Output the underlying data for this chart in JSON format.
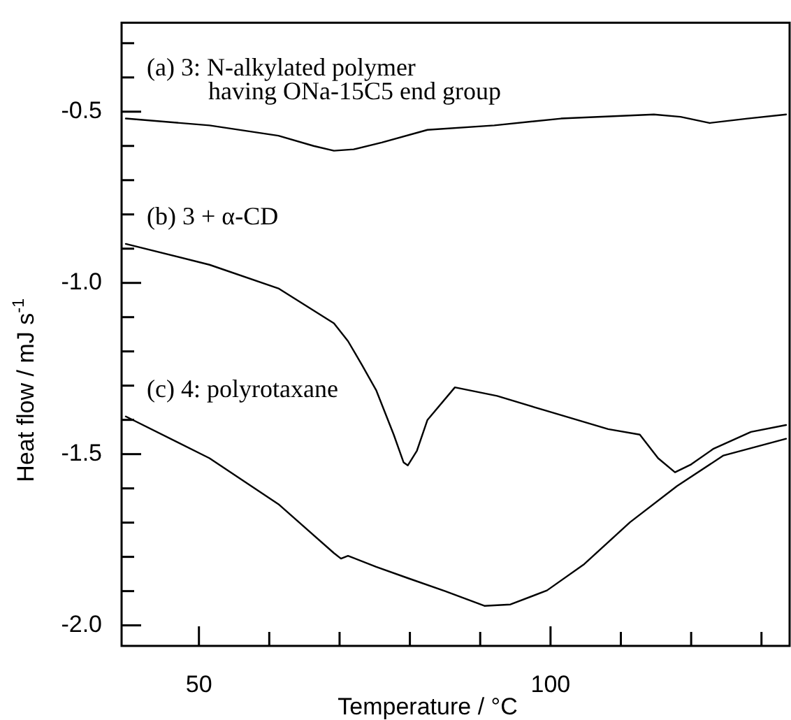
{
  "chart_data": {
    "type": "line",
    "xlabel": "Temperature / °C",
    "ylabel": "Heat flow / mJ s$^{-1}$",
    "xlim": [
      39,
      134
    ],
    "ylim": [
      -2.06,
      -0.24
    ],
    "xticks": [
      50,
      {
        "value": 60,
        "label": null
      },
      {
        "value": 70,
        "label": null
      },
      {
        "value": 80,
        "label": null
      },
      {
        "value": 90,
        "label": null
      },
      100,
      {
        "value": 110,
        "label": null
      },
      {
        "value": 120,
        "label": null
      },
      {
        "value": 130,
        "label": null
      }
    ],
    "yticks": [
      {
        "value": -0.3,
        "label": null
      },
      {
        "value": -0.4,
        "label": null
      },
      -0.5,
      {
        "value": -0.6,
        "label": null
      },
      {
        "value": -0.7,
        "label": null
      },
      {
        "value": -0.8,
        "label": null
      },
      {
        "value": -0.9,
        "label": null
      },
      {
        "value": -1.0,
        "label": "-1.0"
      },
      {
        "value": -1.1,
        "label": null
      },
      {
        "value": -1.2,
        "label": null
      },
      {
        "value": -1.3,
        "label": null
      },
      {
        "value": -1.4,
        "label": null
      },
      -1.5,
      {
        "value": -1.6,
        "label": null
      },
      {
        "value": -1.7,
        "label": null
      },
      {
        "value": -1.8,
        "label": null
      },
      {
        "value": -1.9,
        "label": null
      },
      {
        "value": -2.0,
        "label": "-2.0"
      }
    ],
    "grid": false,
    "legend": false,
    "marker": "none",
    "line_style": "solid",
    "series": [
      {
        "name": "(a) 3: N-alkylated polymer having ONa-15C5 end group",
        "color": "#000000",
        "x": [
          39.6,
          51.5,
          61.3,
          66.3,
          69.2,
          72,
          76,
          82.5,
          92,
          101.5,
          114.7,
          118.5,
          122.6,
          128,
          133.5
        ],
        "values": [
          -0.52,
          -0.54,
          -0.57,
          -0.6,
          -0.614,
          -0.61,
          -0.59,
          -0.553,
          -0.54,
          -0.52,
          -0.508,
          -0.515,
          -0.533,
          -0.52,
          -0.508
        ]
      },
      {
        "name": "(b) 3 + α-CD",
        "color": "#000000",
        "x": [
          39.6,
          51.5,
          61.3,
          69.2,
          71.2,
          73.2,
          75.2,
          77.7,
          79.1,
          79.7,
          81,
          82.5,
          86.4,
          92.4,
          99.5,
          108.2,
          112.7,
          115.3,
          117.7,
          120,
          123.2,
          128.5,
          133.5
        ],
        "values": [
          -0.886,
          -0.947,
          -1.016,
          -1.118,
          -1.17,
          -1.24,
          -1.313,
          -1.443,
          -1.524,
          -1.533,
          -1.49,
          -1.4,
          -1.305,
          -1.33,
          -1.374,
          -1.427,
          -1.443,
          -1.512,
          -1.553,
          -1.53,
          -1.484,
          -1.435,
          -1.415
        ]
      },
      {
        "name": "(c) 4: polyrotaxane",
        "color": "#000000",
        "x": [
          39.6,
          51.5,
          61.3,
          69.2,
          70.2,
          71.2,
          75.2,
          79.7,
          85,
          90.6,
          94.3,
          99.5,
          104.8,
          111.3,
          118,
          124.6,
          133.5
        ],
        "values": [
          -1.39,
          -1.512,
          -1.646,
          -1.789,
          -1.805,
          -1.797,
          -1.829,
          -1.862,
          -1.9,
          -1.943,
          -1.939,
          -1.898,
          -1.821,
          -1.699,
          -1.593,
          -1.504,
          -1.455
        ]
      }
    ]
  }
}
